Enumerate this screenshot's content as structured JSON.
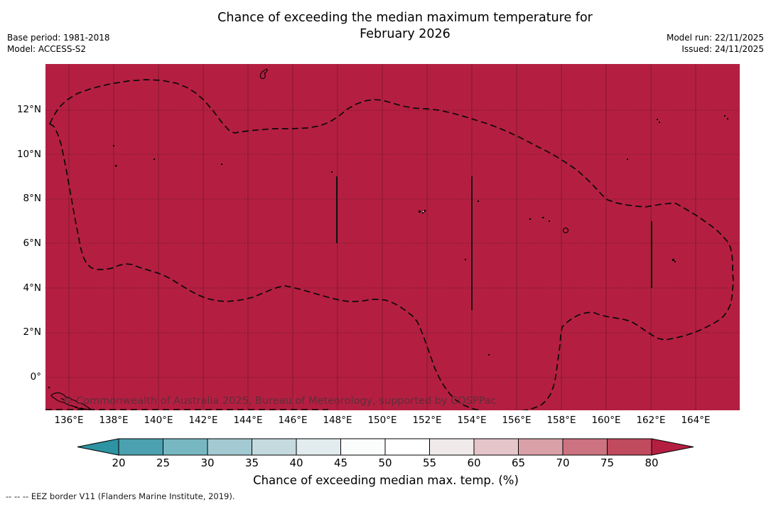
{
  "header": {
    "title_line1": "Chance of exceeding the median maximum temperature for",
    "title_line2": "February 2026",
    "base_period": "Base period: 1981-2018",
    "model": "Model: ACCESS-S2",
    "model_run": "Model run: 22/11/2025",
    "issued": "Issued: 24/11/2025"
  },
  "map": {
    "watermark": "© Commonwealth of Australia 2025, Bureau of Meteorology, supported by COSPPac",
    "fill_color": "#b41f41",
    "x_ticks": [
      "136°E",
      "138°E",
      "140°E",
      "142°E",
      "144°E",
      "146°E",
      "148°E",
      "150°E",
      "152°E",
      "154°E",
      "156°E",
      "158°E",
      "160°E",
      "162°E",
      "164°E"
    ],
    "y_ticks": [
      "12°N",
      "10°N",
      "8°N",
      "6°N",
      "4°N",
      "2°N",
      "0°"
    ]
  },
  "colorbar": {
    "label": "Chance of exceeding median max. temp. (%)",
    "ticks": [
      "20",
      "25",
      "30",
      "35",
      "40",
      "45",
      "50",
      "55",
      "60",
      "65",
      "70",
      "75",
      "80"
    ],
    "colors": [
      "#2e93a2",
      "#4ba1af",
      "#77b7c1",
      "#a3cad2",
      "#c5dade",
      "#e2ecee",
      "#fbfdfd",
      "#ffffff",
      "#f1eaea",
      "#e6c5ca",
      "#daa0a8",
      "#cc7280",
      "#c04a5e",
      "#b41f41"
    ]
  },
  "footer": {
    "eez_note": "--  --  -- EEZ border V11 (Flanders Marine Institute, 2019)."
  },
  "chart_data": {
    "type": "heatmap",
    "title": "Chance of exceeding the median maximum temperature for February 2026",
    "subtitle_meta": [
      "Base period: 1981-2018",
      "Model: ACCESS-S2",
      "Model run: 22/11/2025",
      "Issued: 24/11/2025"
    ],
    "x": {
      "label": "",
      "tick_labels": [
        "136°E",
        "138°E",
        "140°E",
        "142°E",
        "144°E",
        "146°E",
        "148°E",
        "150°E",
        "152°E",
        "154°E",
        "156°E",
        "158°E",
        "160°E",
        "162°E",
        "164°E"
      ],
      "range_deg_east": [
        135,
        166
      ]
    },
    "y": {
      "label": "",
      "tick_labels": [
        "12°N",
        "10°N",
        "8°N",
        "6°N",
        "4°N",
        "2°N",
        "0°"
      ],
      "range_deg_north": [
        -1.5,
        14.1
      ]
    },
    "colorbar": {
      "label": "Chance of exceeding median max. temp. (%)",
      "tick_values": [
        20,
        25,
        30,
        35,
        40,
        45,
        50,
        55,
        60,
        65,
        70,
        75,
        80
      ],
      "extend": "both"
    },
    "values": "Entire mapped region (Micronesia / FSM EEZ area) is shaded in the highest class: >80% chance of exceeding the median maximum temperature",
    "uniform_value_pct": ">80",
    "overlays": [
      "dashed EEZ border outline",
      "solid internal EEZ divider lines near 148°E, 154°E and 162°E",
      "island coastlines (Guam, Yap, Chuuk, Pohnpei, Kosrae, New Guinea coast)"
    ],
    "grid": true,
    "legend_position": "bottom horizontal colorbar with pointed ends"
  }
}
